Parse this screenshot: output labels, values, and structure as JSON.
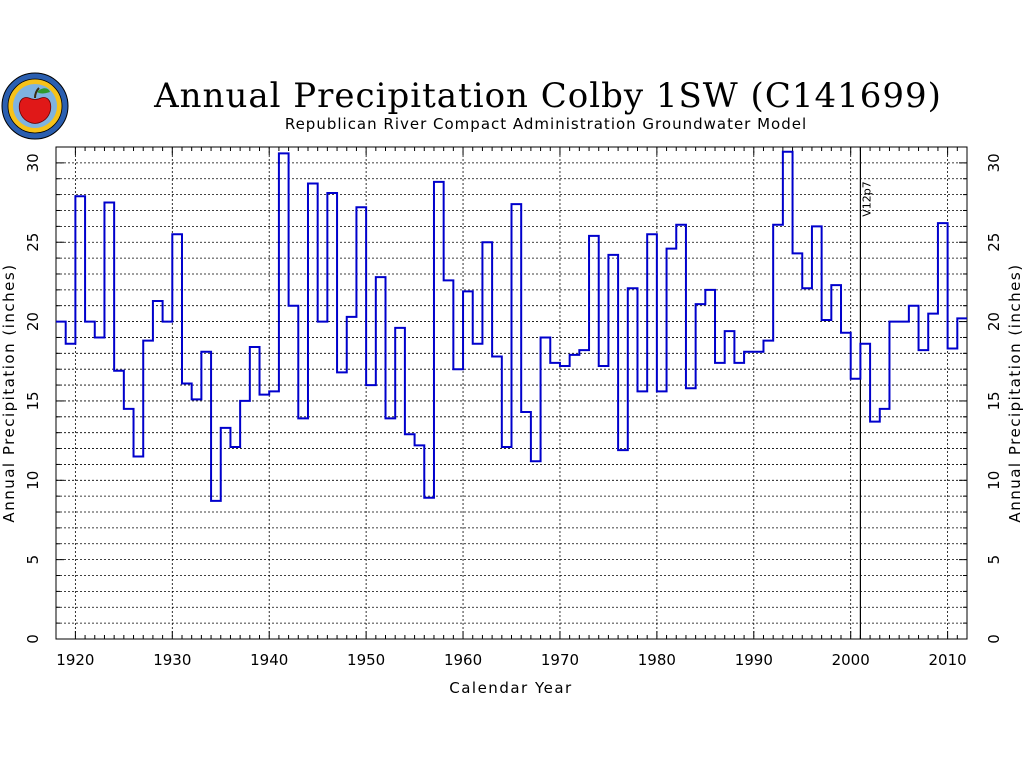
{
  "chart_data": {
    "type": "line",
    "step": true,
    "title": "Annual Precipitation Colby 1SW (C141699)",
    "subtitle": "Republican River Compact Administration Groundwater Model",
    "xlabel": "Calendar Year",
    "ylabel": "Annual Precipitation (inches)",
    "y2label": "Annual Precipitation (inches)",
    "xlim": [
      1918,
      2012
    ],
    "ylim": [
      0,
      31
    ],
    "xticks": [
      1920,
      1930,
      1940,
      1950,
      1960,
      1970,
      1980,
      1990,
      2000,
      2010
    ],
    "yticks": [
      0,
      5,
      10,
      15,
      20,
      25,
      30
    ],
    "grid": true,
    "colors": {
      "series": "#0000cc",
      "marker_line": "#000000",
      "grid": "#000000"
    },
    "series": [
      {
        "x": [
          1918,
          1919,
          1920,
          1921,
          1922,
          1923,
          1924,
          1925,
          1926,
          1927,
          1928,
          1929,
          1930,
          1931,
          1932,
          1933,
          1934,
          1935,
          1936,
          1937,
          1938,
          1939,
          1940,
          1941,
          1942,
          1943,
          1944,
          1945,
          1946,
          1947,
          1948,
          1949,
          1950,
          1951,
          1952,
          1953,
          1954,
          1955,
          1956,
          1957,
          1958,
          1959,
          1960,
          1961,
          1962,
          1963,
          1964,
          1965,
          1966,
          1967,
          1968,
          1969,
          1970,
          1971,
          1972,
          1973,
          1974,
          1975,
          1976,
          1977,
          1978,
          1979,
          1980,
          1981,
          1982,
          1983,
          1984,
          1985,
          1986,
          1987,
          1988,
          1989,
          1990,
          1991,
          1992,
          1993,
          1994,
          1995,
          1996,
          1997,
          1998,
          1999,
          2000,
          2001,
          2002,
          2003,
          2004,
          2005,
          2006,
          2007,
          2008,
          2009,
          2010,
          2011
        ],
        "values": [
          20.0,
          18.6,
          27.9,
          20.0,
          19.0,
          27.5,
          16.9,
          14.5,
          11.5,
          18.8,
          21.3,
          20.0,
          25.5,
          16.1,
          15.1,
          18.1,
          8.7,
          13.3,
          12.1,
          15.0,
          18.4,
          15.4,
          15.6,
          30.6,
          21.0,
          13.9,
          28.7,
          20.0,
          28.1,
          16.8,
          20.3,
          27.2,
          16.0,
          22.8,
          13.9,
          19.6,
          12.9,
          12.2,
          8.9,
          28.8,
          22.6,
          17.0,
          21.9,
          18.6,
          25.0,
          17.8,
          12.1,
          27.4,
          14.3,
          11.2,
          19.0,
          17.4,
          17.2,
          17.9,
          18.2,
          25.4,
          17.2,
          24.2,
          11.9,
          22.1,
          15.6,
          25.5,
          15.6,
          24.6,
          26.1,
          15.8,
          21.1,
          22.0,
          17.4,
          19.4,
          17.4,
          18.1,
          18.1,
          18.8,
          26.1,
          30.7,
          24.3,
          22.1,
          26.0,
          20.1,
          22.3,
          19.3,
          16.4,
          18.6,
          13.7,
          14.5,
          20.0,
          20.0,
          21.0,
          18.2,
          20.5,
          26.2,
          18.3,
          20.2
        ]
      }
    ],
    "annotations": [
      {
        "text": "V12p7",
        "x": 2001
      }
    ]
  }
}
